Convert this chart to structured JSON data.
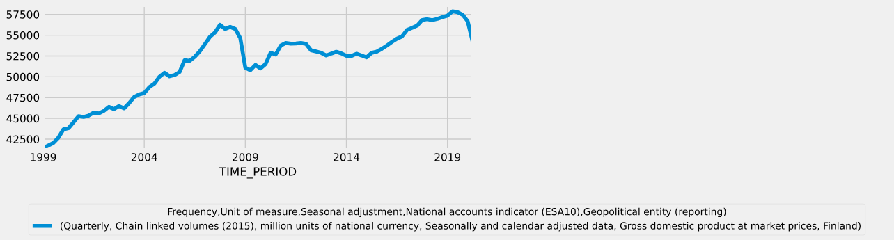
{
  "chart_data": {
    "type": "line",
    "xlabel": "TIME_PERIOD",
    "legend_title": "Frequency,Unit of measure,Seasonal adjustment,National accounts indicator (ESA10),Geopolitical entity (reporting)",
    "x": [
      1999.0,
      1999.25,
      1999.5,
      1999.75,
      2000.0,
      2000.25,
      2000.5,
      2000.75,
      2001.0,
      2001.25,
      2001.5,
      2001.75,
      2002.0,
      2002.25,
      2002.5,
      2002.75,
      2003.0,
      2003.25,
      2003.5,
      2003.75,
      2004.0,
      2004.25,
      2004.5,
      2004.75,
      2005.0,
      2005.25,
      2005.5,
      2005.75,
      2006.0,
      2006.25,
      2006.5,
      2006.75,
      2007.0,
      2007.25,
      2007.5,
      2007.75,
      2008.0,
      2008.25,
      2008.5,
      2008.75,
      2009.0,
      2009.25,
      2009.5,
      2009.75,
      2010.0,
      2010.25,
      2010.5,
      2010.75,
      2011.0,
      2011.25,
      2011.5,
      2011.75,
      2012.0,
      2012.25,
      2012.5,
      2012.75,
      2013.0,
      2013.25,
      2013.5,
      2013.75,
      2014.0,
      2014.25,
      2014.5,
      2014.75,
      2015.0,
      2015.25,
      2015.5,
      2015.75,
      2016.0,
      2016.25,
      2016.5,
      2016.75,
      2017.0,
      2017.25,
      2017.5,
      2017.75,
      2018.0,
      2018.25,
      2018.5,
      2018.75,
      2019.0,
      2019.25,
      2019.5,
      2019.75,
      2020.0,
      2020.25
    ],
    "series": [
      {
        "name": "(Quarterly, Chain linked volumes (2015), million units of national currency, Seasonally and calendar adjusted data, Gross domestic product at market prices, Finland)",
        "color": "#008fd5",
        "values": [
          41420,
          41730,
          42040,
          42670,
          43670,
          43810,
          44540,
          45270,
          45170,
          45330,
          45690,
          45590,
          45900,
          46380,
          46110,
          46480,
          46210,
          46830,
          47560,
          47880,
          48040,
          48750,
          49170,
          50000,
          50480,
          50060,
          50210,
          50580,
          52000,
          51920,
          52400,
          53080,
          53920,
          54810,
          55330,
          56250,
          55750,
          56000,
          55750,
          54650,
          51100,
          50790,
          51420,
          51000,
          51520,
          52880,
          52670,
          53750,
          54060,
          53980,
          54000,
          54060,
          53960,
          53190,
          53040,
          52880,
          52560,
          52790,
          53000,
          52810,
          52520,
          52500,
          52770,
          52560,
          52330,
          52880,
          53020,
          53350,
          53750,
          54190,
          54580,
          54850,
          55630,
          55880,
          56150,
          56830,
          56920,
          56810,
          56960,
          57170,
          57350,
          57870,
          57770,
          57460,
          56670,
          54170
        ]
      }
    ],
    "xlim": [
      1999,
      2020.25
    ],
    "xticks": [
      1999,
      2004,
      2009,
      2014,
      2019
    ],
    "ylim": [
      41250,
      58560
    ],
    "yticks": [
      42500,
      45000,
      47500,
      50000,
      52500,
      55000,
      57500
    ],
    "grid": true,
    "legend": "bottom"
  }
}
